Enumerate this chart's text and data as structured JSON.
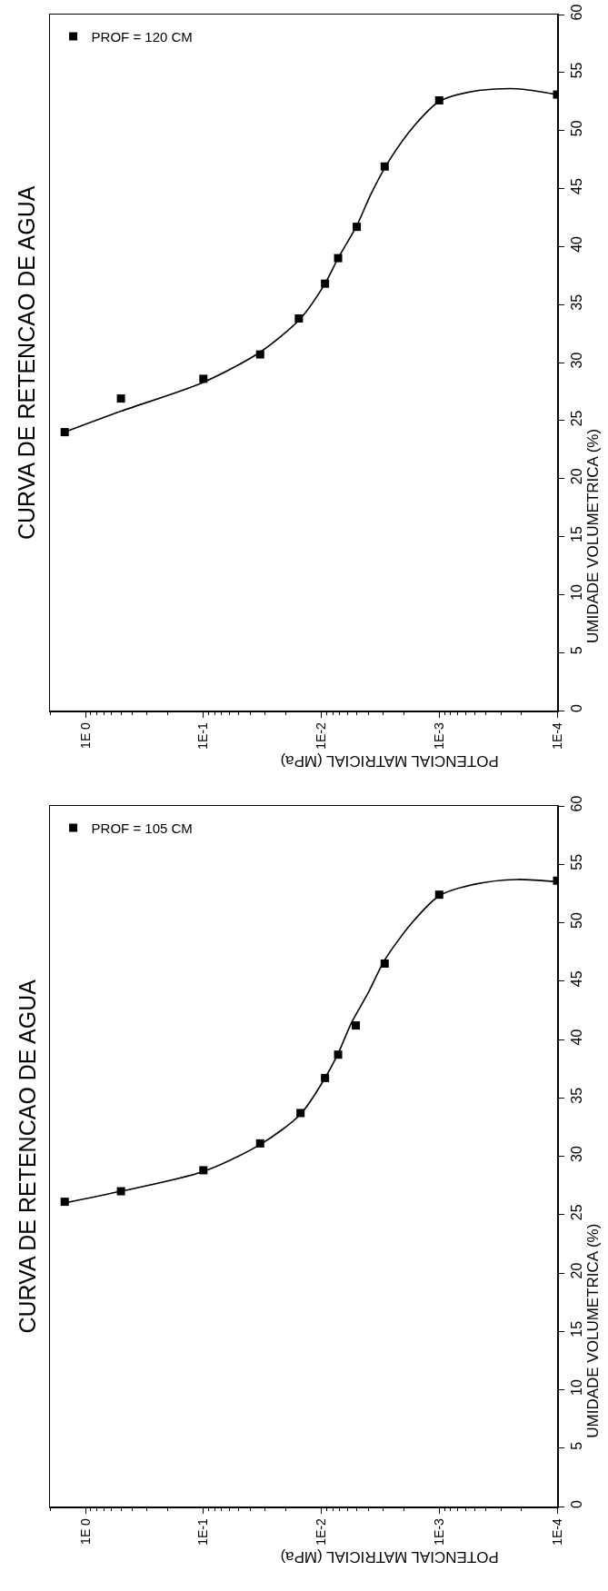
{
  "chart_data": [
    {
      "type": "scatter",
      "title": "CURVA DE RETENCAO DE AGUA",
      "xlabel": "POTENCIAL MATRICIAL (MPa)",
      "ylabel": "UMIDADE VOLUMETRICA (%)",
      "log": "x",
      "legend": "top left",
      "xlim": [
        2,
        0.0001
      ],
      "xticks": [
        {
          "value": 1,
          "label": "1E 0"
        },
        {
          "value": 0.1,
          "label": "1E-1"
        },
        {
          "value": 0.01,
          "label": "1E-2"
        },
        {
          "value": 0.001,
          "label": "1E-3"
        },
        {
          "value": 0.0001,
          "label": "1E-4"
        }
      ],
      "ylim": [
        0,
        60
      ],
      "yticks": [
        0,
        5,
        10,
        15,
        20,
        25,
        30,
        35,
        40,
        45,
        50,
        55,
        60
      ],
      "series": [
        {
          "name": "PROF = 120 CM",
          "marker": "square",
          "color": "#000000",
          "x": [
            1.5,
            0.5,
            0.1,
            0.033,
            0.0155,
            0.0093,
            0.0072,
            0.005,
            0.0029,
            0.001,
            0.0001
          ],
          "values": [
            24.0,
            26.9,
            28.6,
            30.7,
            33.8,
            36.8,
            39.0,
            41.7,
            46.9,
            52.6,
            53.1
          ]
        },
        {
          "type": "line",
          "color": "#000000",
          "x": [
            1.5,
            0.5,
            0.1,
            0.033,
            0.015,
            0.0093,
            0.0072,
            0.005,
            0.0038,
            0.0027,
            0.0016,
            0.001,
            0.0005,
            0.00022,
            0.0001
          ],
          "values": [
            24.0,
            25.8,
            28.3,
            30.9,
            33.8,
            36.8,
            39.0,
            41.8,
            44.5,
            47.3,
            50.5,
            52.5,
            53.4,
            53.6,
            53.1
          ]
        }
      ]
    },
    {
      "type": "scatter",
      "title": "CURVA DE RETENCAO DE AGUA",
      "xlabel": "POTENCIAL MATRICIAL (MPa)",
      "ylabel": "UMIDADE VOLUMETRICA (%)",
      "log": "x",
      "legend": "top left",
      "xlim": [
        2,
        0.0001
      ],
      "xticks": [
        {
          "value": 1,
          "label": "1E 0"
        },
        {
          "value": 0.1,
          "label": "1E-1"
        },
        {
          "value": 0.01,
          "label": "1E-2"
        },
        {
          "value": 0.001,
          "label": "1E-3"
        },
        {
          "value": 0.0001,
          "label": "1E-4"
        }
      ],
      "ylim": [
        0,
        60
      ],
      "yticks": [
        0,
        5,
        10,
        15,
        20,
        25,
        30,
        35,
        40,
        45,
        50,
        55,
        60
      ],
      "series": [
        {
          "name": "PROF = 105 CM",
          "marker": "square",
          "color": "#000000",
          "x": [
            1.5,
            0.5,
            0.1,
            0.033,
            0.015,
            0.0093,
            0.0072,
            0.0051,
            0.0029,
            0.001,
            0.0001
          ],
          "values": [
            26.1,
            27.0,
            28.8,
            31.1,
            33.7,
            36.7,
            38.7,
            41.2,
            46.5,
            52.4,
            53.6
          ]
        },
        {
          "type": "line",
          "color": "#000000",
          "x": [
            1.5,
            0.5,
            0.1,
            0.033,
            0.015,
            0.0093,
            0.0072,
            0.0055,
            0.004,
            0.0029,
            0.0017,
            0.001,
            0.0005,
            0.00022,
            0.0001
          ],
          "values": [
            26.0,
            27.0,
            28.7,
            31.0,
            33.6,
            36.7,
            38.8,
            41.5,
            44.0,
            46.8,
            50.0,
            52.3,
            53.3,
            53.7,
            53.5
          ]
        }
      ]
    }
  ]
}
